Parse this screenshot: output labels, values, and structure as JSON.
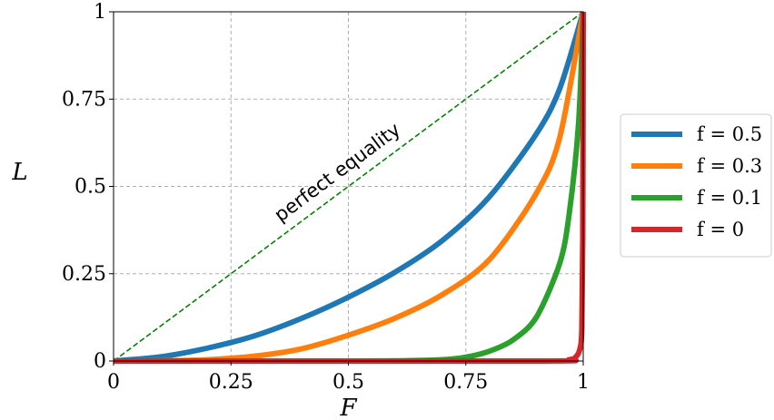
{
  "chart_data": {
    "type": "line",
    "xlabel": "F",
    "ylabel": "L",
    "xlim": [
      0,
      1
    ],
    "ylim": [
      0,
      1
    ],
    "xticks": [
      0,
      0.25,
      0.5,
      0.75,
      1
    ],
    "xtick_labels": [
      "0",
      "0.25",
      "0.5",
      "0.75",
      "1"
    ],
    "yticks": [
      0,
      0.25,
      0.5,
      0.75,
      1
    ],
    "ytick_labels": [
      "0",
      "0.25",
      "0.5",
      "0.75",
      "1"
    ],
    "grid": true,
    "legend_position": "right, outside plot",
    "reference_line": {
      "label": "perfect equality",
      "style": "dashed",
      "color": "#008000",
      "x": [
        0,
        1
      ],
      "y": [
        0,
        1
      ]
    },
    "series": [
      {
        "name": "f = 0.5",
        "color": "#1f77b4",
        "x": [
          0,
          0.1,
          0.2,
          0.3,
          0.4,
          0.5,
          0.6,
          0.7,
          0.8,
          0.9,
          0.95,
          1
        ],
        "y": [
          0,
          0.012,
          0.037,
          0.072,
          0.122,
          0.183,
          0.255,
          0.345,
          0.47,
          0.65,
          0.78,
          1
        ]
      },
      {
        "name": "f = 0.3",
        "color": "#ff7f0e",
        "x": [
          0,
          0.1,
          0.2,
          0.3,
          0.4,
          0.5,
          0.6,
          0.7,
          0.8,
          0.9,
          0.95,
          1
        ],
        "y": [
          0,
          0.0006,
          0.004,
          0.014,
          0.035,
          0.074,
          0.123,
          0.19,
          0.29,
          0.48,
          0.64,
          1
        ]
      },
      {
        "name": "f = 0.1",
        "color": "#2ca02c",
        "x": [
          0,
          0.5,
          0.6,
          0.7,
          0.75,
          0.8,
          0.85,
          0.9,
          0.95,
          0.97,
          0.99,
          1
        ],
        "y": [
          0,
          0,
          0.0005,
          0.004,
          0.011,
          0.028,
          0.06,
          0.125,
          0.28,
          0.42,
          0.68,
          1
        ]
      },
      {
        "name": "f = 0",
        "color": "#d62728",
        "x": [
          0,
          0.9,
          0.97,
          0.985,
          0.993,
          0.997,
          0.999,
          1
        ],
        "y": [
          0,
          0,
          0.004,
          0.013,
          0.035,
          0.09,
          0.35,
          1
        ]
      }
    ]
  }
}
